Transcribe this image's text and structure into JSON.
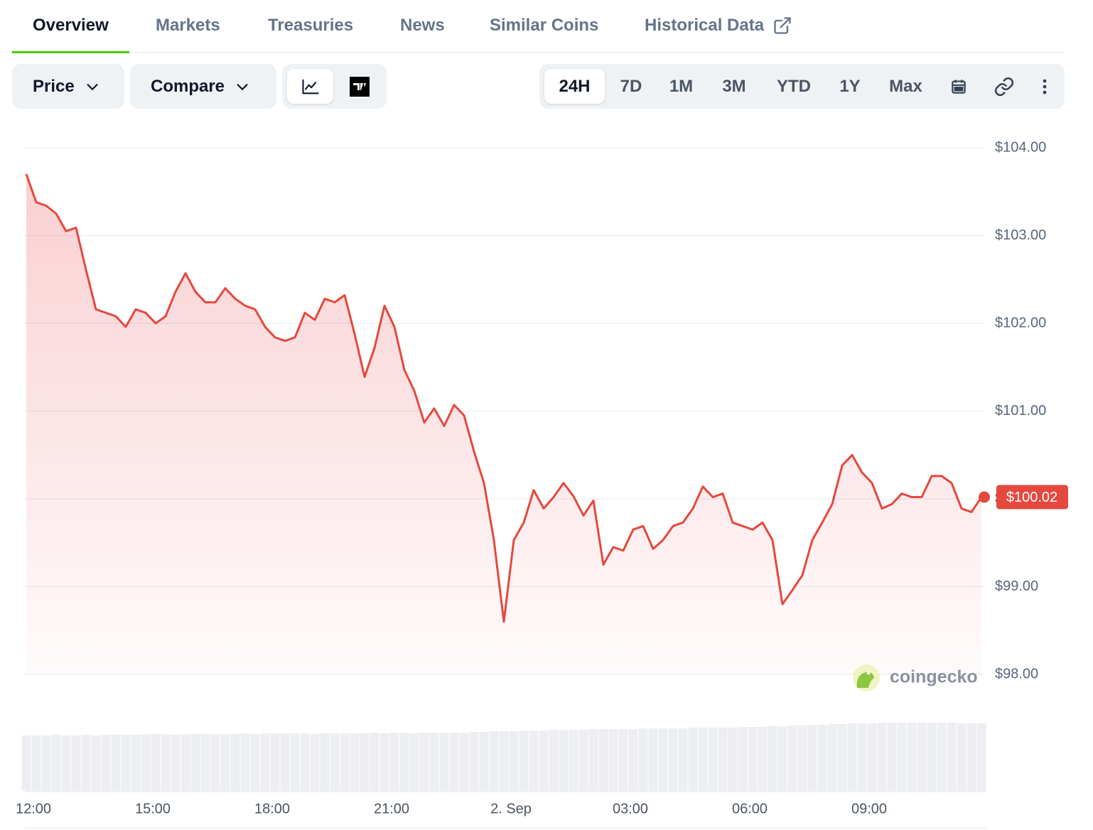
{
  "tabs": [
    {
      "label": "Overview",
      "active": true
    },
    {
      "label": "Markets",
      "active": false
    },
    {
      "label": "Treasuries",
      "active": false
    },
    {
      "label": "News",
      "active": false
    },
    {
      "label": "Similar Coins",
      "active": false
    },
    {
      "label": "Historical Data",
      "active": false
    }
  ],
  "controls": {
    "dropdowns": [
      "Price",
      "Compare"
    ],
    "ranges": [
      {
        "label": "24H",
        "active": true
      },
      {
        "label": "7D",
        "active": false
      },
      {
        "label": "1M",
        "active": false
      },
      {
        "label": "3M",
        "active": false
      },
      {
        "label": "YTD",
        "active": false
      },
      {
        "label": "1Y",
        "active": false
      },
      {
        "label": "Max",
        "active": false
      }
    ]
  },
  "chart_data": {
    "type": "line",
    "fill_area": true,
    "color": "#e5483e",
    "grid": true,
    "watermark": "coingecko",
    "categories": [
      null,
      "12:00",
      null,
      null,
      null,
      null,
      null,
      null,
      null,
      null,
      null,
      null,
      null,
      "15:00",
      null,
      null,
      null,
      null,
      null,
      null,
      null,
      null,
      null,
      null,
      null,
      "18:00",
      null,
      null,
      null,
      null,
      null,
      null,
      null,
      null,
      null,
      null,
      null,
      "21:00",
      null,
      null,
      null,
      null,
      null,
      null,
      null,
      null,
      null,
      null,
      null,
      "2. Sep",
      null,
      null,
      null,
      null,
      null,
      null,
      null,
      null,
      null,
      null,
      null,
      "03:00",
      null,
      null,
      null,
      null,
      null,
      null,
      null,
      null,
      null,
      null,
      null,
      "06:00",
      null,
      null,
      null,
      null,
      null,
      null,
      null,
      null,
      null,
      null,
      null,
      "09:00",
      null,
      null,
      null,
      null,
      null,
      null,
      null,
      null,
      null,
      null,
      null
    ],
    "values": [
      103.7,
      103.38,
      103.34,
      103.25,
      103.05,
      103.09,
      102.61,
      102.16,
      102.12,
      102.08,
      101.96,
      102.16,
      102.12,
      102.0,
      102.08,
      102.36,
      102.57,
      102.36,
      102.24,
      102.24,
      102.4,
      102.28,
      102.2,
      102.16,
      101.96,
      101.84,
      101.8,
      101.84,
      102.12,
      102.04,
      102.28,
      102.24,
      102.32,
      101.88,
      101.39,
      101.72,
      102.2,
      101.96,
      101.47,
      101.23,
      100.87,
      101.03,
      100.83,
      101.07,
      100.95,
      100.54,
      100.18,
      99.53,
      98.6,
      99.53,
      99.73,
      100.1,
      99.89,
      100.02,
      100.18,
      100.03,
      99.81,
      99.98,
      99.25,
      99.45,
      99.41,
      99.65,
      99.69,
      99.43,
      99.53,
      99.69,
      99.73,
      99.89,
      100.14,
      100.02,
      100.06,
      99.73,
      99.69,
      99.65,
      99.73,
      99.53,
      98.8,
      98.96,
      99.13,
      99.53,
      99.73,
      99.94,
      100.38,
      100.5,
      100.3,
      100.18,
      99.89,
      99.94,
      100.06,
      100.02,
      100.02,
      100.26,
      100.26,
      100.18,
      99.89,
      99.85,
      100.02
    ],
    "value_labels": [
      null,
      null,
      null,
      null,
      null,
      null,
      null,
      null,
      null,
      null,
      null,
      null,
      null,
      null,
      null,
      null,
      null,
      null,
      null,
      null,
      null,
      null,
      null,
      null,
      null,
      null,
      null,
      null,
      null,
      null,
      null,
      null,
      null,
      null,
      null,
      null,
      null,
      null,
      null,
      null,
      null,
      null,
      null,
      null,
      null,
      null,
      null,
      null,
      null,
      null,
      null,
      null,
      null,
      null,
      null,
      null,
      null,
      null,
      null,
      null,
      null,
      null,
      null,
      null,
      null,
      null,
      null,
      null,
      null,
      null,
      null,
      null,
      null,
      null,
      null,
      null,
      null,
      null,
      null,
      null,
      null,
      null,
      null,
      null,
      null,
      null,
      null,
      null,
      null,
      null,
      null,
      null,
      null,
      null,
      null,
      null,
      "$100.02"
    ],
    "ylim": [
      98,
      104
    ],
    "yticks": [
      {
        "value": 98,
        "label": "$98.00"
      },
      {
        "value": 99,
        "label": "$99.00"
      },
      {
        "value": 100,
        "label": "$100.00"
      },
      {
        "value": 101,
        "label": "$101.00"
      },
      {
        "value": 102,
        "label": "$102.00"
      },
      {
        "value": 103,
        "label": "$103.00"
      },
      {
        "value": 104,
        "label": "$104.00"
      }
    ],
    "volume": {
      "color": "#eceef1",
      "values": [
        78,
        78,
        78,
        79,
        78,
        78,
        79,
        78,
        79,
        79,
        79,
        79,
        80,
        80,
        80,
        79,
        80,
        80,
        80,
        80,
        80,
        80,
        81,
        80,
        81,
        81,
        81,
        81,
        81,
        80,
        81,
        81,
        81,
        81,
        81,
        82,
        81,
        82,
        82,
        81,
        82,
        82,
        82,
        82,
        82,
        83,
        83,
        84,
        84,
        84,
        85,
        85,
        85,
        86,
        86,
        86,
        86,
        87,
        87,
        87,
        87,
        87,
        88,
        88,
        88,
        88,
        88,
        89,
        89,
        89,
        89,
        89,
        90,
        90,
        90,
        91,
        91,
        92,
        92,
        93,
        93,
        94,
        94,
        95,
        95,
        95,
        96,
        96,
        96,
        96,
        96,
        96,
        96,
        96,
        95,
        95,
        95
      ]
    }
  }
}
